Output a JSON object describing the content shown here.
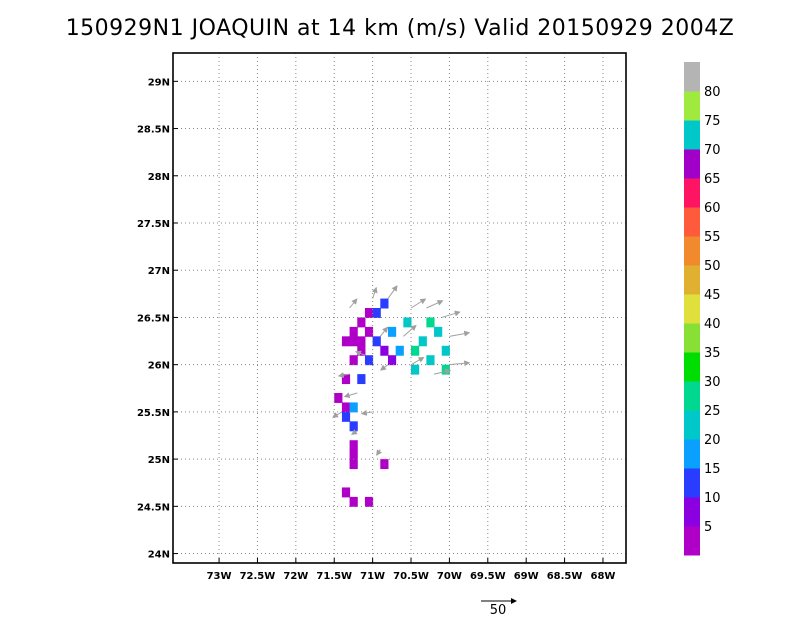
{
  "title": "150929N1 JOAQUIN at 14 km (m/s) Valid 20150929 2004Z",
  "chart_data": {
    "type": "heatmap",
    "title": "150929N1 JOAQUIN at 14 km (m/s) Valid 20150929 2004Z",
    "xlim": [
      -73.6,
      -67.7
    ],
    "ylim": [
      23.9,
      29.3
    ],
    "grid": true,
    "x_ticks": [
      {
        "value": -73.0,
        "label": "73W"
      },
      {
        "value": -72.5,
        "label": "72.5W"
      },
      {
        "value": -72.0,
        "label": "72W"
      },
      {
        "value": -71.5,
        "label": "71.5W"
      },
      {
        "value": -71.0,
        "label": "71W"
      },
      {
        "value": -70.5,
        "label": "70.5W"
      },
      {
        "value": -70.0,
        "label": "70W"
      },
      {
        "value": -69.5,
        "label": "69.5W"
      },
      {
        "value": -69.0,
        "label": "69W"
      },
      {
        "value": -68.5,
        "label": "68.5W"
      },
      {
        "value": -68.0,
        "label": "68W"
      }
    ],
    "y_ticks": [
      {
        "value": 24.0,
        "label": "24N"
      },
      {
        "value": 24.5,
        "label": "24.5N"
      },
      {
        "value": 25.0,
        "label": "25N"
      },
      {
        "value": 25.5,
        "label": "25.5N"
      },
      {
        "value": 26.0,
        "label": "26N"
      },
      {
        "value": 26.5,
        "label": "26.5N"
      },
      {
        "value": 27.0,
        "label": "27N"
      },
      {
        "value": 27.5,
        "label": "27.5N"
      },
      {
        "value": 28.0,
        "label": "28N"
      },
      {
        "value": 28.5,
        "label": "28.5N"
      },
      {
        "value": 29.0,
        "label": "29N"
      }
    ],
    "colorbar": {
      "labels": [
        "5",
        "10",
        "15",
        "20",
        "25",
        "30",
        "35",
        "40",
        "45",
        "50",
        "55",
        "60",
        "65",
        "70",
        "75",
        "80"
      ],
      "colors": [
        "#b000c8",
        "#8a00e0",
        "#2a3cff",
        "#0aa0ff",
        "#00c8c8",
        "#00d890",
        "#00dd00",
        "#88e034",
        "#e0e03c",
        "#e0b030",
        "#f08a2c",
        "#ff5a3c",
        "#ff1464",
        "#a000c8",
        "#00c8c8",
        "#a0ea40",
        "#b4b4b4"
      ]
    },
    "cells": [
      {
        "lon": -71.25,
        "lat": 26.25,
        "v": 4
      },
      {
        "lon": -71.15,
        "lat": 26.25,
        "v": 4
      },
      {
        "lon": -71.25,
        "lat": 26.35,
        "v": 4
      },
      {
        "lon": -71.15,
        "lat": 26.45,
        "v": 4
      },
      {
        "lon": -71.05,
        "lat": 26.55,
        "v": 4
      },
      {
        "lon": -71.05,
        "lat": 26.35,
        "v": 4
      },
      {
        "lon": -71.35,
        "lat": 26.25,
        "v": 4
      },
      {
        "lon": -71.15,
        "lat": 26.15,
        "v": 4
      },
      {
        "lon": -71.25,
        "lat": 26.05,
        "v": 4
      },
      {
        "lon": -71.35,
        "lat": 25.85,
        "v": 4
      },
      {
        "lon": -71.45,
        "lat": 25.65,
        "v": 4
      },
      {
        "lon": -71.35,
        "lat": 25.55,
        "v": 4
      },
      {
        "lon": -71.25,
        "lat": 25.15,
        "v": 4
      },
      {
        "lon": -71.25,
        "lat": 25.05,
        "v": 4
      },
      {
        "lon": -71.25,
        "lat": 24.95,
        "v": 4
      },
      {
        "lon": -70.85,
        "lat": 24.95,
        "v": 4
      },
      {
        "lon": -71.35,
        "lat": 24.65,
        "v": 4
      },
      {
        "lon": -71.25,
        "lat": 24.55,
        "v": 4
      },
      {
        "lon": -71.05,
        "lat": 24.55,
        "v": 4
      },
      {
        "lon": -70.95,
        "lat": 26.55,
        "v": 12
      },
      {
        "lon": -70.85,
        "lat": 26.65,
        "v": 12
      },
      {
        "lon": -70.95,
        "lat": 26.25,
        "v": 12
      },
      {
        "lon": -71.05,
        "lat": 26.05,
        "v": 12
      },
      {
        "lon": -71.15,
        "lat": 25.85,
        "v": 12
      },
      {
        "lon": -71.35,
        "lat": 25.45,
        "v": 12
      },
      {
        "lon": -71.25,
        "lat": 25.35,
        "v": 12
      },
      {
        "lon": -70.85,
        "lat": 26.15,
        "v": 8
      },
      {
        "lon": -70.75,
        "lat": 26.05,
        "v": 8
      },
      {
        "lon": -70.75,
        "lat": 26.35,
        "v": 16
      },
      {
        "lon": -70.65,
        "lat": 26.15,
        "v": 16
      },
      {
        "lon": -70.55,
        "lat": 26.45,
        "v": 22
      },
      {
        "lon": -70.35,
        "lat": 26.25,
        "v": 22
      },
      {
        "lon": -70.25,
        "lat": 26.05,
        "v": 22
      },
      {
        "lon": -70.15,
        "lat": 26.35,
        "v": 22
      },
      {
        "lon": -70.05,
        "lat": 26.15,
        "v": 22
      },
      {
        "lon": -70.45,
        "lat": 25.95,
        "v": 22
      },
      {
        "lon": -70.45,
        "lat": 26.15,
        "v": 28
      },
      {
        "lon": -70.25,
        "lat": 26.45,
        "v": 28
      },
      {
        "lon": -70.05,
        "lat": 25.95,
        "v": 28
      },
      {
        "lon": -71.25,
        "lat": 25.55,
        "v": 18
      }
    ],
    "vectors": [
      {
        "lon": -71.3,
        "lat": 26.6,
        "u": 8,
        "v": 10
      },
      {
        "lon": -71.0,
        "lat": 26.7,
        "u": 4,
        "v": 12
      },
      {
        "lon": -70.8,
        "lat": 26.7,
        "u": 10,
        "v": 14
      },
      {
        "lon": -70.5,
        "lat": 26.6,
        "u": 16,
        "v": 10
      },
      {
        "lon": -70.3,
        "lat": 26.6,
        "u": 18,
        "v": 8
      },
      {
        "lon": -70.1,
        "lat": 26.5,
        "u": 20,
        "v": 6
      },
      {
        "lon": -70.0,
        "lat": 26.3,
        "u": 22,
        "v": 4
      },
      {
        "lon": -70.0,
        "lat": 26.0,
        "u": 22,
        "v": 2
      },
      {
        "lon": -70.2,
        "lat": 25.9,
        "u": 18,
        "v": 4
      },
      {
        "lon": -70.5,
        "lat": 26.0,
        "u": 14,
        "v": 8
      },
      {
        "lon": -70.6,
        "lat": 26.3,
        "u": 14,
        "v": 12
      },
      {
        "lon": -70.9,
        "lat": 26.3,
        "u": 8,
        "v": 10
      },
      {
        "lon": -71.1,
        "lat": 26.1,
        "u": -10,
        "v": 4
      },
      {
        "lon": -71.3,
        "lat": 25.9,
        "u": -12,
        "v": -2
      },
      {
        "lon": -71.2,
        "lat": 25.7,
        "u": -14,
        "v": -4
      },
      {
        "lon": -71.4,
        "lat": 25.5,
        "u": -10,
        "v": -6
      },
      {
        "lon": -71.0,
        "lat": 25.5,
        "u": -12,
        "v": -2
      },
      {
        "lon": -71.2,
        "lat": 25.3,
        "u": -6,
        "v": -4
      },
      {
        "lon": -70.9,
        "lat": 25.1,
        "u": -4,
        "v": -6
      },
      {
        "lon": -70.8,
        "lat": 26.0,
        "u": -8,
        "v": -6
      }
    ],
    "reference_vector": {
      "label": "50"
    }
  }
}
